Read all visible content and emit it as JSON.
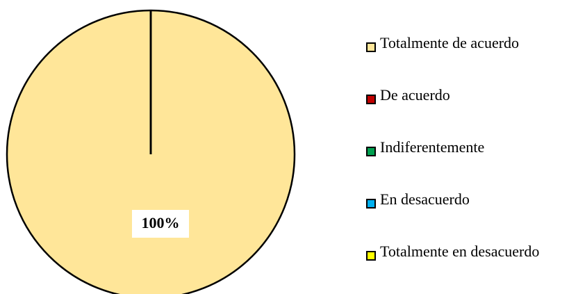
{
  "chart_data": {
    "type": "pie",
    "categories": [
      "Totalmente de acuerdo",
      "De acuerdo",
      "Indiferentemente",
      "En desacuerdo",
      "Totalmente en desacuerdo"
    ],
    "values": [
      100,
      0,
      0,
      0,
      0
    ],
    "value_labels": [
      "100%",
      null,
      null,
      null,
      null
    ],
    "colors": [
      "#FFE699",
      "#C00000",
      "#00A050",
      "#00B0F0",
      "#FFFF00"
    ],
    "legend": "right"
  }
}
